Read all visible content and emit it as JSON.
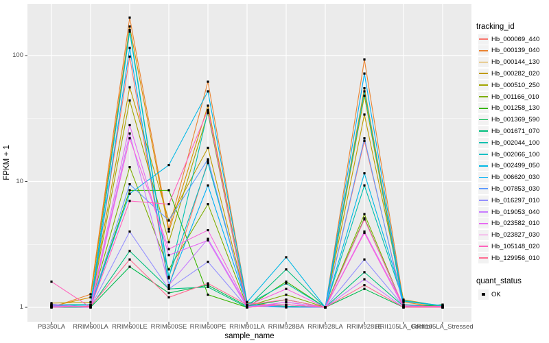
{
  "chart_data": {
    "type": "line",
    "title": "",
    "xlabel": "sample_name",
    "ylabel": "FPKM + 1",
    "y_scale": "log10",
    "y_ticks": [
      1,
      10,
      100
    ],
    "y_minor_ticks": [
      3.1623,
      31.623
    ],
    "ylim": [
      0.93,
      230
    ],
    "grid": true,
    "panel_bg": "#EBEBEB",
    "grid_color": "#FFFFFF",
    "axis_text_color": "#4D4D4D",
    "tick_color": "#333333",
    "point_color": "#000000",
    "legend_key_bg": "#F2F2F2",
    "series_legend_title": "tracking_id",
    "point_legend_title": "quant_status",
    "point_legend_items": [
      {
        "label": "OK"
      }
    ],
    "categories": [
      "PB350LA",
      "RRIM600LA",
      "RRIM600LE",
      "RRIM600SE",
      "RRIM600PE",
      "RRIM901LA",
      "RRIM928BA",
      "RRIM928LA",
      "RRIM928LE",
      "RRII105LA_Control",
      "RRII105LA_Stressed"
    ],
    "series": [
      {
        "name": "Hb_000069_440",
        "color": "#F8766D",
        "values": [
          1.05,
          1.05,
          98,
          1.45,
          14.5,
          1.05,
          1.05,
          1,
          21,
          1.05,
          1
        ]
      },
      {
        "name": "Hb_000139_040",
        "color": "#EA8331",
        "values": [
          1,
          1.27,
          200,
          4.2,
          62,
          1.1,
          1,
          1,
          93,
          1.1,
          1
        ]
      },
      {
        "name": "Hb_000144_130",
        "color": "#D89000",
        "values": [
          1.02,
          1.2,
          170,
          4.0,
          40,
          1.05,
          1.02,
          1,
          55,
          1.05,
          1.02
        ]
      },
      {
        "name": "Hb_000282_020",
        "color": "#C09B00",
        "values": [
          1.08,
          1.1,
          56,
          4.9,
          18.5,
          1.05,
          1.02,
          1,
          34,
          1.15,
          1.02
        ]
      },
      {
        "name": "Hb_000510_250",
        "color": "#A3A500",
        "values": [
          1.03,
          1.05,
          44,
          3.3,
          35,
          1,
          1.05,
          1,
          48,
          1.03,
          1
        ]
      },
      {
        "name": "Hb_001166_010",
        "color": "#7CAE00",
        "values": [
          1.05,
          1.05,
          13,
          2.0,
          6.6,
          1.02,
          1.26,
          1,
          5.5,
          1,
          1.03
        ]
      },
      {
        "name": "Hb_001258_130",
        "color": "#39B600",
        "values": [
          1,
          1.02,
          8.5,
          8.5,
          1.26,
          1,
          1.6,
          1,
          5.1,
          1,
          1.05
        ]
      },
      {
        "name": "Hb_001369_590",
        "color": "#00BB4E",
        "values": [
          1.02,
          1,
          2.1,
          1.3,
          1.5,
          1.02,
          1.15,
          1,
          1.4,
          1,
          1.05
        ]
      },
      {
        "name": "Hb_001671_070",
        "color": "#00BF7D",
        "values": [
          1,
          1,
          2.8,
          1.4,
          1.45,
          1,
          2.0,
          1,
          1.9,
          1.02,
          1
        ]
      },
      {
        "name": "Hb_002044_100",
        "color": "#00C0AF",
        "values": [
          1.05,
          1.05,
          155,
          1.7,
          36,
          1.05,
          1.55,
          1,
          9.3,
          1.12,
          1.02
        ]
      },
      {
        "name": "Hb_002066_100",
        "color": "#00BFC4",
        "values": [
          1.02,
          1.05,
          160,
          1.75,
          14,
          1.05,
          1.02,
          1,
          52,
          1,
          1
        ]
      },
      {
        "name": "Hb_002499_050",
        "color": "#00B8E5",
        "values": [
          1,
          1.02,
          8.0,
          13.5,
          52,
          1.1,
          2.5,
          1,
          11.6,
          1.13,
          1.03
        ]
      },
      {
        "name": "Hb_006620_030",
        "color": "#00B0F6",
        "values": [
          1.04,
          1,
          115,
          1.5,
          9.3,
          1.05,
          1,
          1,
          72,
          1.05,
          1
        ]
      },
      {
        "name": "Hb_007853_030",
        "color": "#619CFF",
        "values": [
          1,
          1.03,
          9.5,
          4.9,
          15,
          1.02,
          1,
          1,
          22,
          1,
          1
        ]
      },
      {
        "name": "Hb_016297_010",
        "color": "#9590FF",
        "values": [
          1.02,
          1,
          4.0,
          1.4,
          2.3,
          1,
          1.1,
          1,
          2.4,
          1.02,
          1
        ]
      },
      {
        "name": "Hb_019053_040",
        "color": "#C77CFF",
        "values": [
          1.06,
          1,
          24,
          1.5,
          3.5,
          1.02,
          1.05,
          1,
          1.67,
          1,
          1.02
        ]
      },
      {
        "name": "Hb_023582_010",
        "color": "#E76BF3",
        "values": [
          1,
          1.02,
          28,
          2.6,
          3.4,
          1,
          1.1,
          1,
          4.0,
          1.03,
          1
        ]
      },
      {
        "name": "Hb_023827_030",
        "color": "#F763DF",
        "values": [
          1.03,
          1,
          22,
          2.9,
          4.1,
          1.03,
          1.4,
          1,
          3.9,
          1,
          1
        ]
      },
      {
        "name": "Hb_105148_020",
        "color": "#FF62BC",
        "values": [
          1.6,
          1,
          7.0,
          6.6,
          37,
          1,
          1.05,
          1,
          5.0,
          1.02,
          1.02
        ]
      },
      {
        "name": "Hb_129956_010",
        "color": "#FF6C91",
        "values": [
          1,
          1.02,
          2.4,
          1.2,
          1.55,
          1.05,
          1.15,
          1,
          1.5,
          1,
          1
        ]
      }
    ]
  }
}
